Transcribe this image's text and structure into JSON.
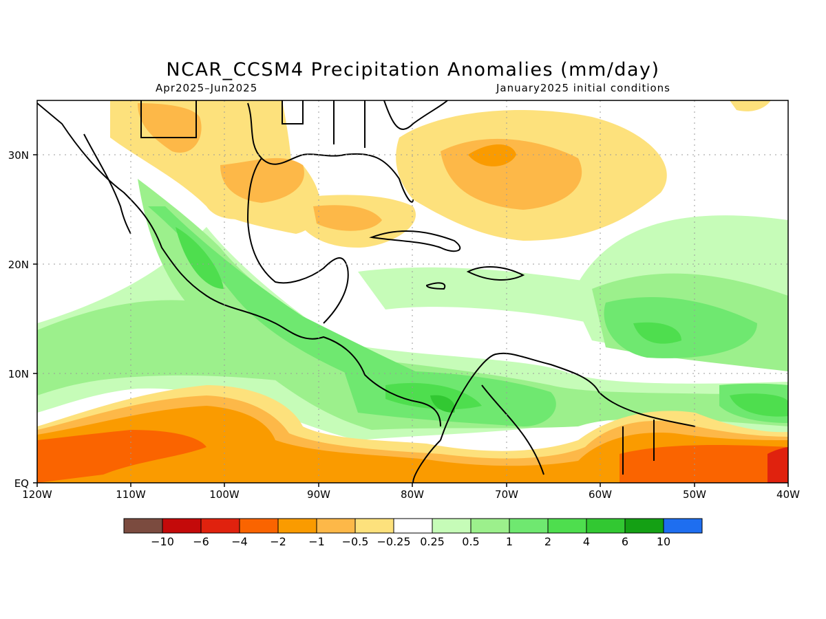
{
  "title": "NCAR_CCSM4 Precipitation Anomalies (mm/day)",
  "period": "Apr2025–Jun2025",
  "init": "January2025 initial conditions",
  "lon_ticks": [
    "120W",
    "110W",
    "100W",
    "90W",
    "80W",
    "70W",
    "60W",
    "50W",
    "40W"
  ],
  "lat_ticks": [
    "EQ",
    "10N",
    "20N",
    "30N"
  ],
  "colorbar": {
    "colors": [
      "#7b4b3f",
      "#c40a0a",
      "#e0220e",
      "#fa6400",
      "#fa9b00",
      "#fdb848",
      "#fde17c",
      "#ffffff",
      "#c6fcb8",
      "#9cf08c",
      "#6fe870",
      "#4ede4e",
      "#32c832",
      "#14a014",
      "#1e6ef0"
    ],
    "labels": [
      "−10",
      "−6",
      "−4",
      "−2",
      "−1",
      "−0.5",
      "−0.25",
      "0.25",
      "0.5",
      "1",
      "2",
      "4",
      "6",
      "10"
    ]
  }
}
